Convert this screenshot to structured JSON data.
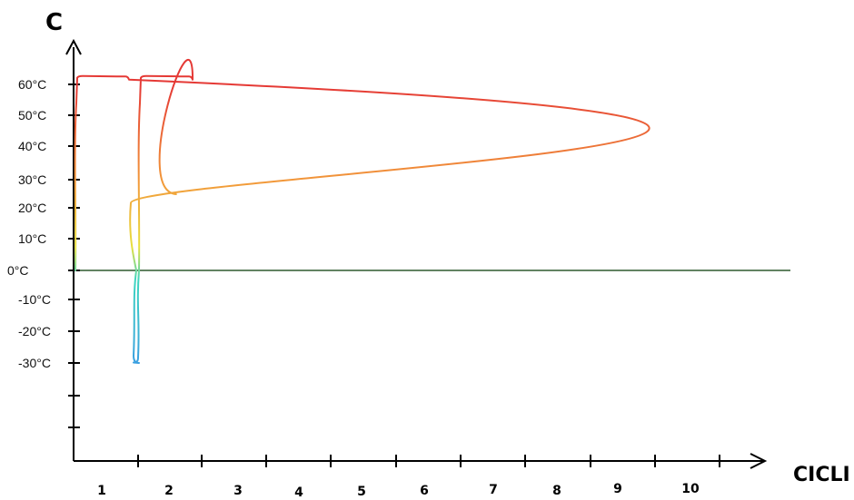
{
  "chart_data": {
    "type": "line",
    "title": "",
    "ylabel": "C",
    "xlabel": "CICLI",
    "y_ticks": [
      {
        "value": 60,
        "label": "60°C"
      },
      {
        "value": 50,
        "label": "50°C"
      },
      {
        "value": 40,
        "label": "40°C"
      },
      {
        "value": 30,
        "label": "30°C"
      },
      {
        "value": 20,
        "label": "20°C"
      },
      {
        "value": 10,
        "label": "10°C"
      },
      {
        "value": 0,
        "label": "0°C"
      },
      {
        "value": -10,
        "label": "-10°C"
      },
      {
        "value": -20,
        "label": "-20°C"
      },
      {
        "value": -30,
        "label": "-30°C"
      }
    ],
    "categories": [
      "1",
      "2",
      "3",
      "4",
      "5",
      "6",
      "7",
      "8",
      "9",
      "10"
    ],
    "series": [
      {
        "high_value": 63,
        "low_value": -30,
        "cycles": 10
      }
    ],
    "ylim": [
      -82,
      72
    ],
    "grid": false,
    "zero_line_color": "#2e5a2e",
    "gradient_colors": [
      "#e53935",
      "#f29a3a",
      "#e8e040",
      "#3ed6c0",
      "#3a9fe0"
    ]
  }
}
